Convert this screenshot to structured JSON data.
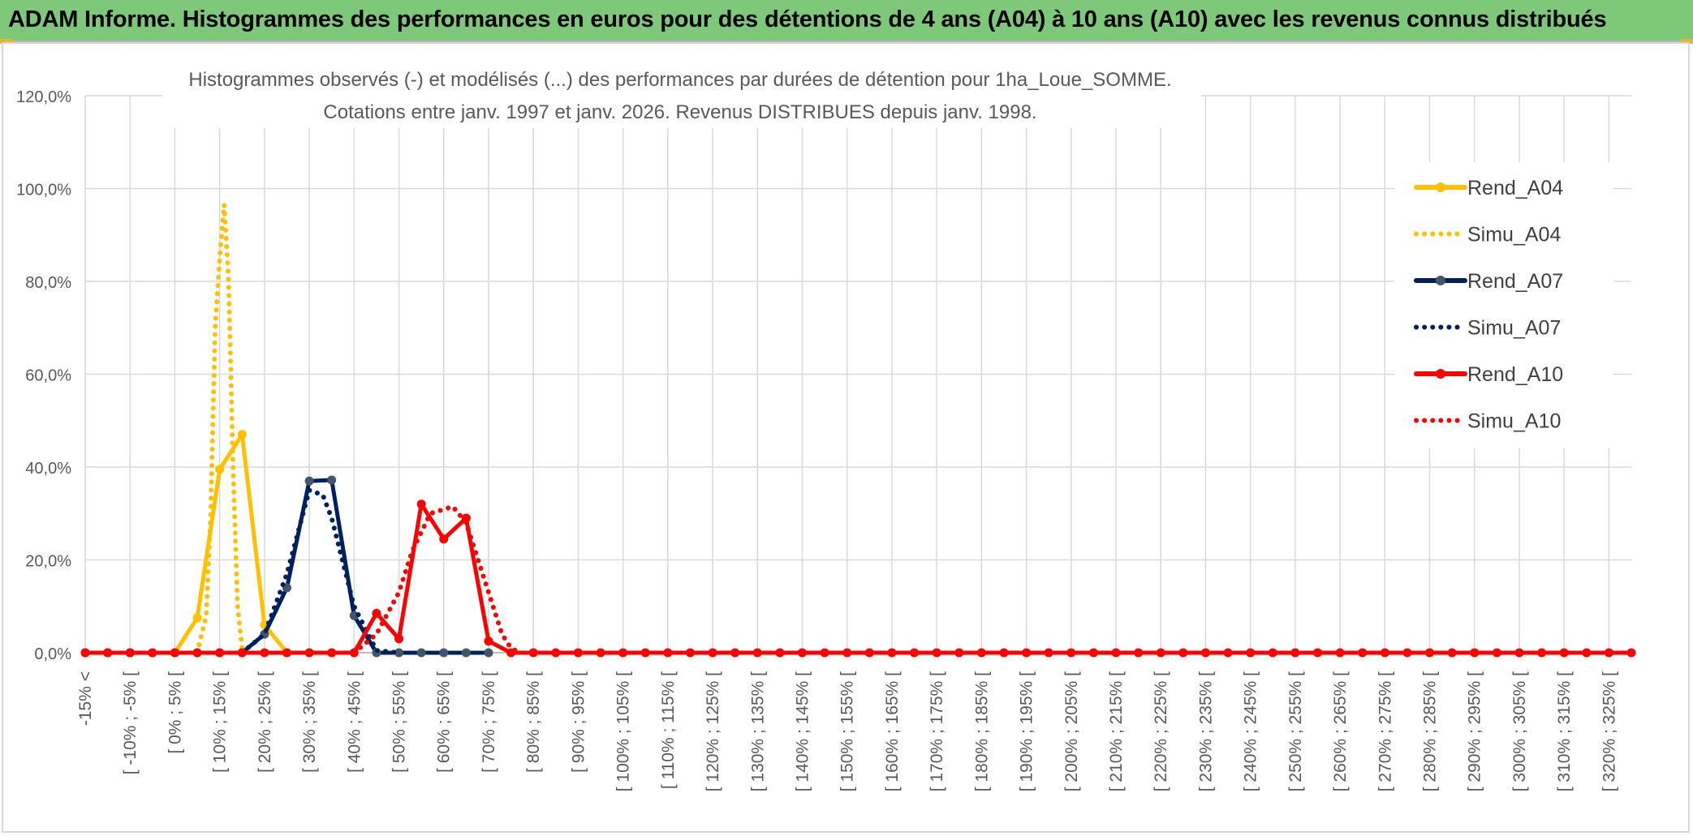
{
  "banner": {
    "title": "ADAM Informe. Histogrammes des performances en euros pour des détentions de 4 ans (A04) à 10 ans (A10) avec les revenus connus distribués"
  },
  "colors": {
    "a04": "#ffc000",
    "a07": "#002060",
    "a10": "#ff0000",
    "grid": "#d9d9d9",
    "banner": "#7ec87a"
  },
  "chart_data": {
    "type": "line",
    "title_line1": "Histogrammes observés (-) et modélisés (...) des performances par durées de détention pour 1ha_Loue_SOMME.",
    "title_line2": "Cotations entre janv. 1997 et janv. 2026. Revenus DISTRIBUES depuis janv. 1998.",
    "ylim": [
      0,
      120
    ],
    "yticks": [
      "0,0%",
      "20,0%",
      "40,0%",
      "60,0%",
      "80,0%",
      "100,0%",
      "120,0%"
    ],
    "categories": [
      "-15% <",
      "[ -10% ; -5% [",
      "[ 0% ; 5% [",
      "[ 10% ; 15% [",
      "[ 20% ; 25% [",
      "[ 30% ; 35% [",
      "[ 40% ; 45% [",
      "[ 50% ; 55% [",
      "[ 60% ; 65% [",
      "[ 70% ; 75% [",
      "[ 80% ; 85% [",
      "[ 90% ; 95% [",
      "[ 100% ; 105% [",
      "[ 110% ; 115% [",
      "[ 120% ; 125% [",
      "[ 130% ; 135% [",
      "[ 140% ; 145% [",
      "[ 150% ; 155% [",
      "[ 160% ; 165% [",
      "[ 170% ; 175% [",
      "[ 180% ; 185% [",
      "[ 190% ; 195% [",
      "[ 200% ; 205% [",
      "[ 210% ; 215% [",
      "[ 220% ; 225% [",
      "[ 230% ; 235% [",
      "[ 240% ; 245% [",
      "[ 250% ; 255% [",
      "[ 260% ; 265% [",
      "[ 270% ; 275% [",
      "[ 280% ; 285% [",
      "[ 290% ; 295% [",
      "[ 300% ; 305% [",
      "[ 310% ; 315% [",
      "[ 320% ; 325% ["
    ],
    "x_positions_percent": [
      -15,
      -10,
      -5,
      0,
      5,
      10,
      15,
      20,
      25,
      30,
      35,
      40,
      45,
      50,
      55,
      60,
      65,
      70,
      75,
      80,
      85,
      90,
      95,
      100,
      105,
      110,
      115,
      120,
      125,
      130,
      135,
      140,
      145,
      150,
      155,
      160,
      165,
      170,
      175,
      180,
      185,
      190,
      195,
      200,
      205,
      210,
      215,
      220,
      225,
      230,
      235,
      240,
      245,
      250,
      255,
      260,
      265,
      270,
      275,
      280,
      285,
      290,
      295,
      300,
      305,
      310,
      315,
      320,
      325,
      330
    ],
    "series": [
      {
        "name": "Rend_A04",
        "style": "solid",
        "color": "#ffc000",
        "points": [
          [
            -15,
            0
          ],
          [
            -10,
            0
          ],
          [
            -5,
            0
          ],
          [
            0,
            0
          ],
          [
            5,
            0
          ],
          [
            10,
            7.5
          ],
          [
            15,
            39.5
          ],
          [
            20,
            47
          ],
          [
            25,
            6
          ],
          [
            30,
            0
          ],
          [
            35,
            0
          ],
          [
            40,
            0
          ],
          [
            45,
            0
          ]
        ]
      },
      {
        "name": "Simu_A04",
        "style": "dotted",
        "color": "#ffc000",
        "points": [
          [
            10,
            0
          ],
          [
            12,
            8
          ],
          [
            13,
            30
          ],
          [
            14,
            70
          ],
          [
            15,
            85
          ],
          [
            16,
            96.5
          ],
          [
            17,
            80
          ],
          [
            18,
            40
          ],
          [
            19,
            10
          ],
          [
            20,
            1
          ],
          [
            21,
            0
          ]
        ]
      },
      {
        "name": "Rend_A07",
        "style": "solid",
        "color": "#002060",
        "points": [
          [
            -15,
            0
          ],
          [
            -10,
            0
          ],
          [
            -5,
            0
          ],
          [
            0,
            0
          ],
          [
            5,
            0
          ],
          [
            10,
            0
          ],
          [
            15,
            0
          ],
          [
            20,
            0
          ],
          [
            25,
            4
          ],
          [
            30,
            14
          ],
          [
            35,
            37
          ],
          [
            40,
            37.2
          ],
          [
            45,
            8
          ],
          [
            50,
            0
          ],
          [
            55,
            0
          ],
          [
            60,
            0
          ],
          [
            65,
            0
          ],
          [
            70,
            0
          ],
          [
            75,
            0
          ]
        ]
      },
      {
        "name": "Simu_A07",
        "style": "dotted",
        "color": "#002060",
        "points": [
          [
            20,
            0
          ],
          [
            25,
            4
          ],
          [
            30,
            17
          ],
          [
            35,
            35
          ],
          [
            38,
            34
          ],
          [
            40,
            29
          ],
          [
            45,
            10
          ],
          [
            50,
            0.5
          ],
          [
            55,
            0
          ]
        ]
      },
      {
        "name": "Rend_A10",
        "style": "solid",
        "color": "#ff0000",
        "points": [
          [
            -15,
            0
          ],
          [
            -10,
            0
          ],
          [
            -5,
            0
          ],
          [
            0,
            0
          ],
          [
            5,
            0
          ],
          [
            10,
            0
          ],
          [
            15,
            0
          ],
          [
            20,
            0
          ],
          [
            25,
            0
          ],
          [
            30,
            0
          ],
          [
            35,
            0
          ],
          [
            40,
            0
          ],
          [
            45,
            0
          ],
          [
            50,
            8.5
          ],
          [
            55,
            3
          ],
          [
            60,
            32
          ],
          [
            65,
            24.5
          ],
          [
            70,
            29
          ],
          [
            75,
            2.5
          ],
          [
            80,
            0
          ],
          [
            85,
            0
          ],
          [
            90,
            0
          ],
          [
            95,
            0
          ],
          [
            100,
            0
          ],
          [
            105,
            0
          ],
          [
            110,
            0
          ],
          [
            115,
            0
          ],
          [
            120,
            0
          ],
          [
            125,
            0
          ],
          [
            130,
            0
          ],
          [
            135,
            0
          ],
          [
            140,
            0
          ],
          [
            145,
            0
          ],
          [
            150,
            0
          ],
          [
            155,
            0
          ],
          [
            160,
            0
          ],
          [
            165,
            0
          ],
          [
            170,
            0
          ],
          [
            175,
            0
          ],
          [
            180,
            0
          ],
          [
            185,
            0
          ],
          [
            190,
            0
          ],
          [
            195,
            0
          ],
          [
            200,
            0
          ],
          [
            205,
            0
          ],
          [
            210,
            0
          ],
          [
            215,
            0
          ],
          [
            220,
            0
          ],
          [
            225,
            0
          ],
          [
            230,
            0
          ],
          [
            235,
            0
          ],
          [
            240,
            0
          ],
          [
            245,
            0
          ],
          [
            250,
            0
          ],
          [
            255,
            0
          ],
          [
            260,
            0
          ],
          [
            265,
            0
          ],
          [
            270,
            0
          ],
          [
            275,
            0
          ],
          [
            280,
            0
          ],
          [
            285,
            0
          ],
          [
            290,
            0
          ],
          [
            295,
            0
          ],
          [
            300,
            0
          ],
          [
            305,
            0
          ],
          [
            310,
            0
          ],
          [
            315,
            0
          ],
          [
            320,
            0
          ],
          [
            325,
            0
          ],
          [
            330,
            0
          ]
        ]
      },
      {
        "name": "Simu_A10",
        "style": "dotted",
        "color": "#ff0000",
        "points": [
          [
            45,
            0
          ],
          [
            50,
            4
          ],
          [
            55,
            13
          ],
          [
            58,
            22
          ],
          [
            62,
            30
          ],
          [
            67,
            31.5
          ],
          [
            70,
            28
          ],
          [
            75,
            13
          ],
          [
            78,
            4
          ],
          [
            80,
            1
          ],
          [
            82,
            0
          ]
        ]
      }
    ],
    "legend_position": "right"
  }
}
